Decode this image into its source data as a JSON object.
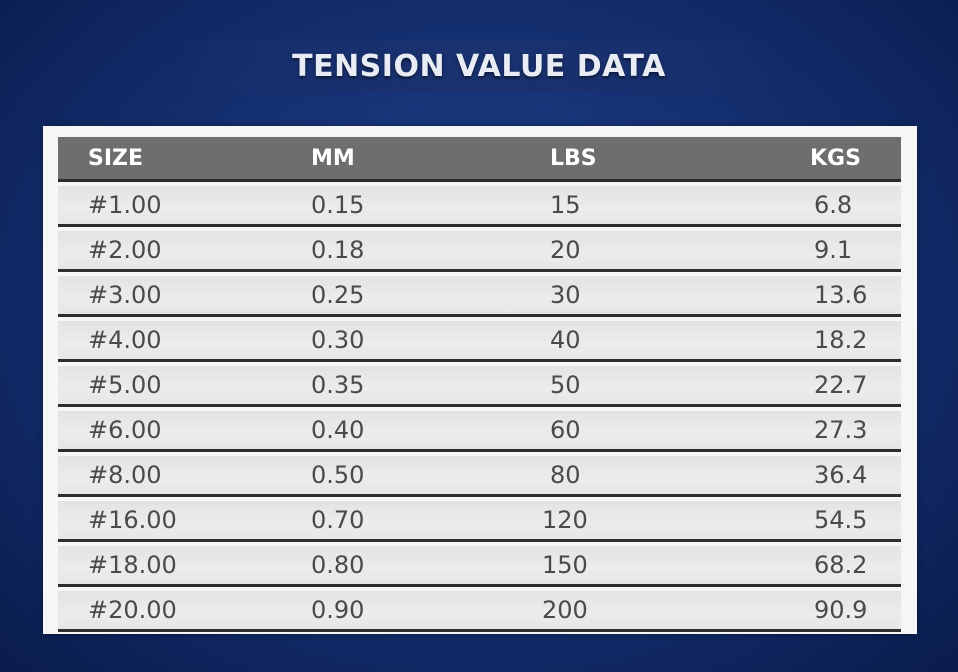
{
  "title": "TENSION VALUE DATA",
  "table": {
    "headers": [
      "SIZE",
      "MM",
      "LBS",
      "KGS"
    ],
    "rows": [
      [
        "#1.00",
        "0.15",
        "15",
        "6.8"
      ],
      [
        "#2.00",
        "0.18",
        "20",
        "9.1"
      ],
      [
        "#3.00",
        "0.25",
        "30",
        "13.6"
      ],
      [
        "#4.00",
        "0.30",
        "40",
        "18.2"
      ],
      [
        "#5.00",
        "0.35",
        "50",
        "22.7"
      ],
      [
        "#6.00",
        "0.40",
        "60",
        "27.3"
      ],
      [
        "#8.00",
        "0.50",
        "80",
        "36.4"
      ],
      [
        "#16.00",
        "0.70",
        "120",
        "54.5"
      ],
      [
        "#18.00",
        "0.80",
        "150",
        "68.2"
      ],
      [
        "#20.00",
        "0.90",
        "200",
        "90.9"
      ]
    ]
  }
}
